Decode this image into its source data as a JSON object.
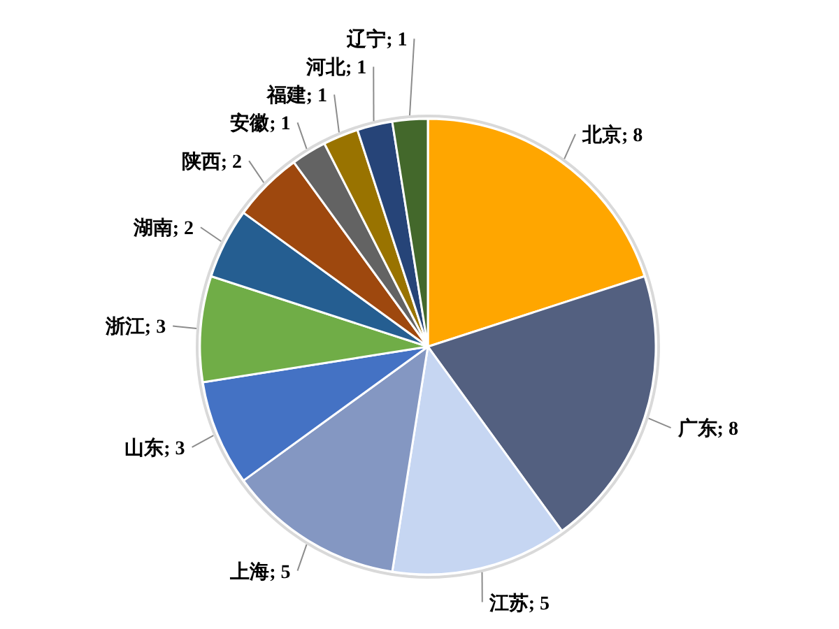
{
  "chart_data": {
    "type": "pie",
    "categories": [
      "北京; 8",
      "广东; 8",
      "江苏; 5",
      "上海; 5",
      "山东; 3",
      "浙江; 3",
      "湖南; 2",
      "陕西; 2",
      "安徽; 1",
      "福建; 1",
      "河北; 1",
      "辽宁; 1"
    ],
    "values": [
      8,
      8,
      5,
      5,
      3,
      3,
      2,
      2,
      1,
      1,
      1,
      1
    ],
    "colors": [
      "#ffa600",
      "#536080",
      "#c6d6f2",
      "#8497c2",
      "#4472c4",
      "#70ad47",
      "#255e91",
      "#9e480e",
      "#636363",
      "#997300",
      "#264478",
      "#43682b"
    ]
  }
}
